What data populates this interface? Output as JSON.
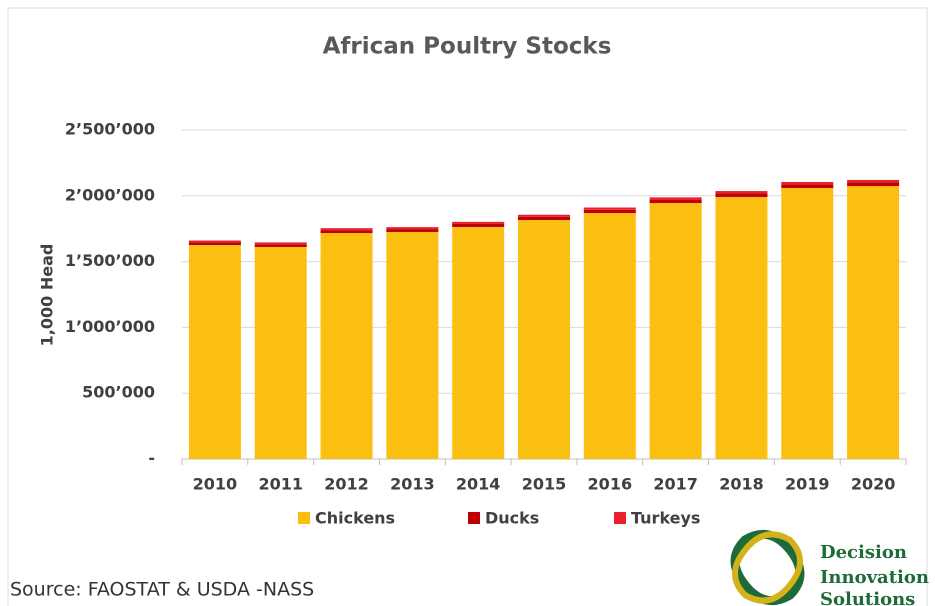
{
  "chart_data": {
    "type": "stacked_bar",
    "title": "African Poultry Stocks",
    "y_label": "1,000 Head",
    "categories": [
      "2010",
      "2011",
      "2012",
      "2013",
      "2014",
      "2015",
      "2016",
      "2017",
      "2018",
      "2019",
      "2020"
    ],
    "series": [
      {
        "name": "Chickens",
        "color": "#fbbf12",
        "values": [
          1626000,
          1611000,
          1717000,
          1725000,
          1763000,
          1816000,
          1869000,
          1945000,
          1991000,
          2059000,
          2074000
        ]
      },
      {
        "name": "Ducks",
        "color": "#c00000",
        "values": [
          20000,
          21000,
          22000,
          22000,
          23000,
          24000,
          25000,
          26000,
          27000,
          28000,
          28000
        ]
      },
      {
        "name": "Turkeys",
        "color": "#e8212b",
        "values": [
          14000,
          14000,
          15000,
          15000,
          16000,
          16000,
          17000,
          17000,
          18000,
          18000,
          18000
        ]
      }
    ],
    "ylim": [
      0,
      2500000
    ],
    "yticks": [
      {
        "value": 0,
        "label": "-"
      },
      {
        "value": 500000,
        "label": "500’000"
      },
      {
        "value": 1000000,
        "label": "1’000’000"
      },
      {
        "value": 1500000,
        "label": "1’500’000"
      },
      {
        "value": 2000000,
        "label": "2’000’000"
      },
      {
        "value": 2500000,
        "label": "2’500’000"
      }
    ],
    "grid": true,
    "legend": "bottom",
    "source": "Source: FAOSTAT & USDA -NASS",
    "logo_text": [
      "Decision",
      "Innovation",
      "Solutions"
    ]
  }
}
